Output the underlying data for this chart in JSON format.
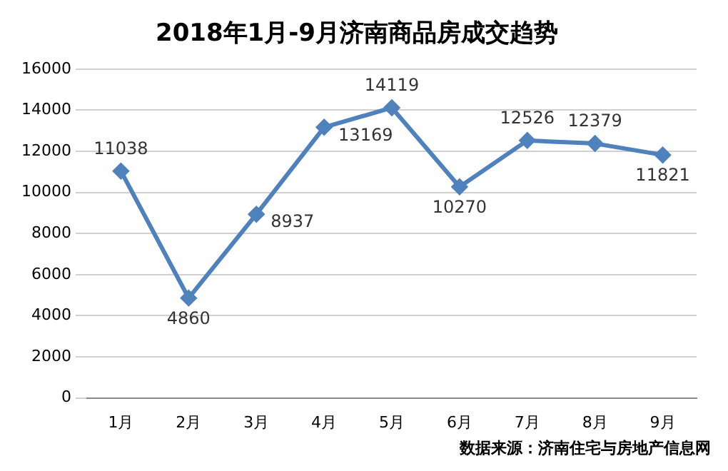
{
  "chart_data": {
    "type": "line",
    "title": "2018年1月-9月济南商品房成交趋势",
    "categories": [
      "1月",
      "2月",
      "3月",
      "4月",
      "5月",
      "6月",
      "7月",
      "8月",
      "9月"
    ],
    "series": [
      {
        "color": "#4f81bd",
        "values": [
          11038,
          4860,
          8937,
          13169,
          14119,
          10270,
          12526,
          12379,
          11821
        ]
      }
    ],
    "ylim": [
      0,
      16000
    ],
    "yticks": [
      0,
      2000,
      4000,
      6000,
      8000,
      10000,
      12000,
      14000,
      16000
    ],
    "grid": "y",
    "legend": false,
    "marker": "diamond",
    "line_style": "solid",
    "data_labels": true,
    "annotations": [
      "数据来源：济南住宅与房地产信息网"
    ]
  }
}
